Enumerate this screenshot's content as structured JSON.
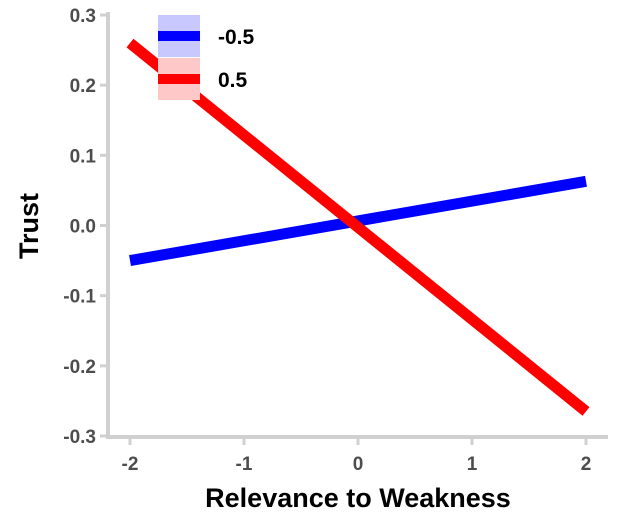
{
  "chart_data": {
    "type": "line",
    "xlabel": "Relevance to Weakness",
    "ylabel": "Trust",
    "xlim": [
      -2,
      2
    ],
    "ylim": [
      -0.3,
      0.3
    ],
    "x_ticks": [
      -2,
      -1,
      0,
      1,
      2
    ],
    "x_tick_labels": [
      "-2",
      "-1",
      "0",
      "1",
      "2"
    ],
    "y_ticks": [
      0.3,
      0.2,
      0.1,
      0.0,
      -0.1,
      -0.2,
      -0.3
    ],
    "y_tick_labels": [
      "0.3",
      "0.2",
      "0.1",
      "0.0",
      "-0.1",
      "-0.2",
      "-0.3"
    ],
    "grid": false,
    "legend_position": "top-left",
    "series": [
      {
        "name": "-0.5",
        "color": "#0000ff",
        "band_color": "#c8c8ff",
        "x": [
          -2,
          2
        ],
        "y": [
          -0.05,
          0.063
        ]
      },
      {
        "name": "0.5",
        "color": "#ff0000",
        "band_color": "#ffc8c8",
        "x": [
          -2,
          2
        ],
        "y": [
          0.26,
          -0.265
        ]
      }
    ]
  }
}
